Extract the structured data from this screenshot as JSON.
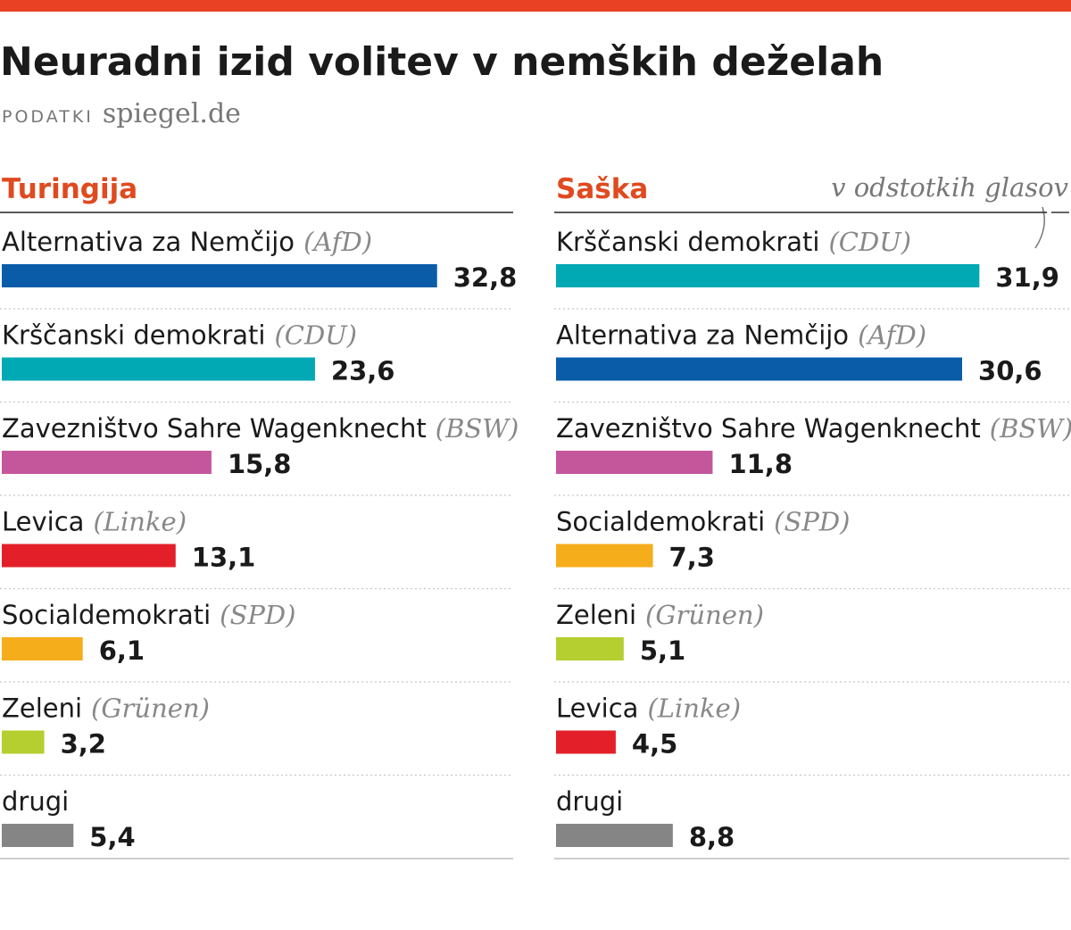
{
  "header": {
    "title": "Neuradni izid volitev v nemških deželah",
    "source_label": "PODATKI",
    "source": "spiegel.de"
  },
  "unit_note": "v odstotkih glasov",
  "chart_data": [
    {
      "type": "bar",
      "title": "Turingija",
      "categories": [
        "Alternativa za Nemčijo",
        "Krščanski demokrati",
        "Zavezništvo Sahre Wagenknecht",
        "Levica",
        "Socialdemokrati",
        "Zeleni",
        "drugi"
      ],
      "abbreviations": [
        "(AfD)",
        "(CDU)",
        "(BSW)",
        "(Linke)",
        "(SPD)",
        "(Grünen)",
        null
      ],
      "values": [
        32.8,
        23.6,
        15.8,
        13.1,
        6.1,
        3.2,
        5.4
      ],
      "value_labels": [
        "32,8",
        "23,6",
        "15,8",
        "13,1",
        "6,1",
        "3,2",
        "5,4"
      ],
      "colors": [
        "#0a5ca8",
        "#00a9b4",
        "#c4579b",
        "#e3202a",
        "#f5ad1b",
        "#b4cf2f",
        "#858585"
      ]
    },
    {
      "type": "bar",
      "title": "Saška",
      "categories": [
        "Krščanski demokrati",
        "Alternativa za Nemčijo",
        "Zavezništvo Sahre Wagenknecht",
        "Socialdemokrati",
        "Zeleni",
        "Levica",
        "drugi"
      ],
      "abbreviations": [
        "(CDU)",
        "(AfD)",
        "(BSW)",
        "(SPD)",
        "(Grünen)",
        "(Linke)",
        null
      ],
      "values": [
        31.9,
        30.6,
        11.8,
        7.3,
        5.1,
        4.5,
        8.8
      ],
      "value_labels": [
        "31,9",
        "30,6",
        "11,8",
        "7,3",
        "5,1",
        "4,5",
        "8,8"
      ],
      "colors": [
        "#00a9b4",
        "#0a5ca8",
        "#c4579b",
        "#f5ad1b",
        "#b4cf2f",
        "#e3202a",
        "#858585"
      ]
    }
  ]
}
